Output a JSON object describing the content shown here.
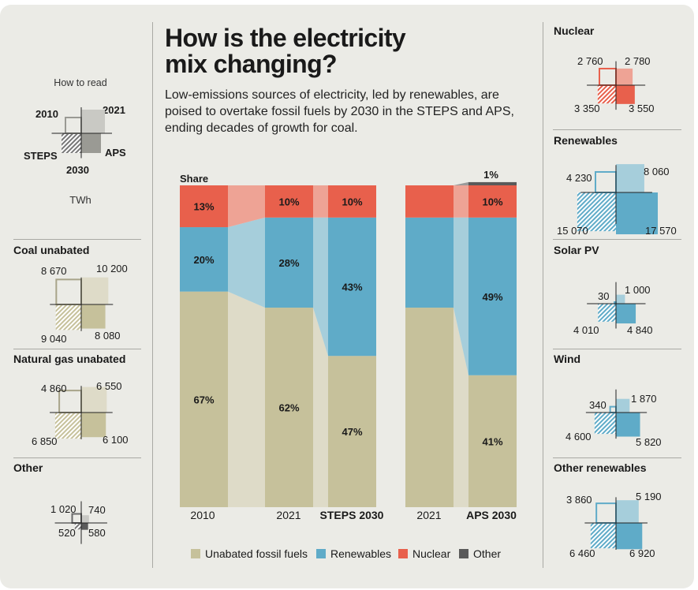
{
  "header": {
    "title_line1": "How is the electricity",
    "title_line2": "mix changing?",
    "subtitle": "Low-emissions sources of electricity, led by renewables, are poised to overtake fossil fuels by 2030 in the STEPS and APS, ending decades of growth for coal."
  },
  "how_to_read": {
    "title": "How to read",
    "unit": "TWh",
    "label_2010": "2010",
    "label_2021": "2021",
    "label_steps": "STEPS",
    "label_aps": "APS",
    "label_2030": "2030"
  },
  "colors": {
    "fossil": "#c6c19b",
    "fossil_light": "#dedbc8",
    "renewables": "#5fabc8",
    "renewables_light": "#a6cedb",
    "nuclear": "#e8604c",
    "nuclear_light": "#eea395",
    "other": "#5a5a5a"
  },
  "left_panels": [
    {
      "title": "Coal unabated",
      "v2010": "8 670",
      "v2021": "10 200",
      "steps": "9 040",
      "aps": "8 080",
      "kind": "fossil"
    },
    {
      "title": "Natural gas unabated",
      "v2010": "4 860",
      "v2021": "6 550",
      "steps": "6 850",
      "aps": "6 100",
      "kind": "fossil"
    },
    {
      "title": "Other",
      "v2010": "1 020",
      "v2021": "740",
      "steps": "520",
      "aps": "580",
      "kind": "other"
    }
  ],
  "right_panels": [
    {
      "title": "Nuclear",
      "v2010": "2 760",
      "v2021": "2 780",
      "steps": "3 350",
      "aps": "3 550",
      "kind": "nuclear"
    },
    {
      "title": "Renewables",
      "v2010": "4 230",
      "v2021": "8 060",
      "steps": "15 070",
      "aps": "17 570",
      "kind": "renewables"
    },
    {
      "title": "Solar PV",
      "v2010": "30",
      "v2021": "1 000",
      "steps": "4 010",
      "aps": "4 840",
      "kind": "renewables"
    },
    {
      "title": "Wind",
      "v2010": "340",
      "v2021": "1 870",
      "steps": "4 600",
      "aps": "5 820",
      "kind": "renewables"
    },
    {
      "title": "Other renewables",
      "v2010": "3 860",
      "v2021": "5 190",
      "steps": "6 460",
      "aps": "6 920",
      "kind": "renewables"
    }
  ],
  "chart_data": {
    "type": "bar",
    "stacked": true,
    "ylabel": "Share",
    "unit": "%",
    "ylim": [
      0,
      100
    ],
    "categories": [
      "2010",
      "2021",
      "STEPS 2030",
      "2021",
      "APS 2030"
    ],
    "category_bold": [
      false,
      false,
      true,
      false,
      true
    ],
    "series": [
      {
        "name": "Unabated fossil fuels",
        "values": [
          67,
          62,
          47,
          62,
          41
        ],
        "labels": [
          "67%",
          "62%",
          "47%",
          "",
          "41%"
        ]
      },
      {
        "name": "Renewables",
        "values": [
          20,
          28,
          43,
          28,
          49
        ],
        "labels": [
          "20%",
          "28%",
          "43%",
          "",
          "49%"
        ]
      },
      {
        "name": "Nuclear",
        "values": [
          13,
          10,
          10,
          10,
          10
        ],
        "labels": [
          "13%",
          "10%",
          "10%",
          "",
          "10%"
        ]
      },
      {
        "name": "Other",
        "values": [
          0,
          0,
          0,
          0,
          1
        ],
        "labels": [
          "",
          "",
          "",
          "",
          "1%"
        ]
      }
    ],
    "legend_position": "bottom"
  }
}
